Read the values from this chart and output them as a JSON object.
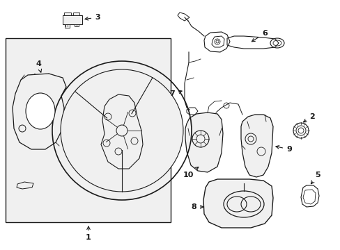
{
  "bg_color": "#ffffff",
  "line_color": "#1a1a1a",
  "fill_light": "#f0f0f0",
  "fill_mid": "#e0e0e0",
  "fill_dark": "#d0d0d0",
  "lw_main": 0.9,
  "lw_thin": 0.6,
  "figsize": [
    4.89,
    3.6
  ],
  "dpi": 100
}
